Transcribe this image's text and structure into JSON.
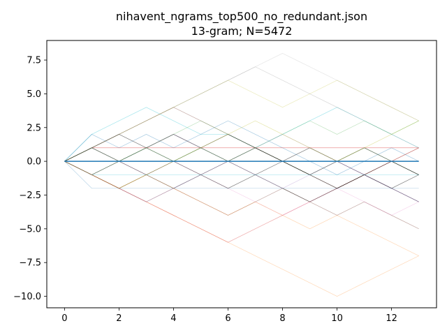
{
  "chart_data": {
    "type": "line",
    "title": "nihavent_ngrams_top500_no_redundant.json",
    "subtitle": "13-gram; N=5472",
    "xlabel": "",
    "ylabel": "",
    "xlim": [
      -0.65,
      13.65
    ],
    "ylim": [
      -10.85,
      8.95
    ],
    "x_ticks": [
      {
        "value": 0,
        "label": "0"
      },
      {
        "value": 2,
        "label": "2"
      },
      {
        "value": 4,
        "label": "4"
      },
      {
        "value": 6,
        "label": "6"
      },
      {
        "value": 8,
        "label": "8"
      },
      {
        "value": 10,
        "label": "10"
      },
      {
        "value": 12,
        "label": "12"
      }
    ],
    "y_ticks": [
      {
        "value": 7.5,
        "label": "7.5"
      },
      {
        "value": 5.0,
        "label": "5.0"
      },
      {
        "value": 2.5,
        "label": "2.5"
      },
      {
        "value": 0.0,
        "label": "0.0"
      },
      {
        "value": -2.5,
        "label": "−2.5"
      },
      {
        "value": -5.0,
        "label": "−5.0"
      },
      {
        "value": -7.5,
        "label": "−7.5"
      },
      {
        "value": -10.0,
        "label": "−10.0"
      }
    ],
    "grid": false,
    "legend": "none",
    "x": [
      0,
      1,
      2,
      3,
      4,
      5,
      6,
      7,
      8,
      9,
      10,
      11,
      12,
      13
    ],
    "series": [
      {
        "color": "#1f77b4",
        "opacity": 1.0,
        "values": [
          0,
          0,
          0,
          0,
          0,
          0,
          0,
          0,
          0,
          0,
          0,
          0,
          0,
          0
        ]
      },
      {
        "color": "#2ca02c",
        "opacity": 0.6,
        "values": [
          0,
          0,
          0,
          0,
          0,
          0,
          0,
          0,
          0,
          0,
          0,
          0,
          0,
          0
        ]
      },
      {
        "color": "#17becf",
        "opacity": 0.4,
        "values": [
          0,
          2,
          3,
          4,
          3,
          2,
          2,
          1,
          2,
          3,
          4,
          3,
          2,
          1
        ]
      },
      {
        "color": "#1f77b4",
        "opacity": 0.4,
        "values": [
          0,
          2,
          1,
          2,
          1,
          2,
          3,
          2,
          1,
          0,
          -1,
          0,
          1,
          0
        ]
      },
      {
        "color": "#d62728",
        "opacity": 0.5,
        "values": [
          0,
          1,
          1,
          1,
          1,
          1,
          1,
          1,
          1,
          1,
          1,
          1,
          1,
          1
        ]
      },
      {
        "color": "#8c564b",
        "opacity": 0.5,
        "values": [
          0,
          1,
          2,
          3,
          4,
          3,
          2,
          1,
          0,
          -1,
          -2,
          -1,
          0,
          1
        ]
      },
      {
        "color": "#7f7f7f",
        "opacity": 0.3,
        "values": [
          0,
          1,
          2,
          3,
          4,
          5,
          6,
          7,
          6,
          5,
          4,
          3,
          2,
          1
        ]
      },
      {
        "color": "#bcbd22",
        "opacity": 0.3,
        "values": [
          0,
          1,
          2,
          3,
          4,
          5,
          6,
          5,
          4,
          5,
          6,
          5,
          4,
          3
        ]
      },
      {
        "color": "#9467bd",
        "opacity": 0.3,
        "values": [
          0,
          1,
          0,
          1,
          2,
          1,
          0,
          1,
          2,
          1,
          0,
          -1,
          -2,
          -3
        ]
      },
      {
        "color": "#ff7f0e",
        "opacity": 0.3,
        "values": [
          0,
          -1,
          -2,
          -3,
          -4,
          -5,
          -6,
          -7,
          -8,
          -9,
          -10,
          -9,
          -8,
          -7
        ]
      },
      {
        "color": "#8c564b",
        "opacity": 0.5,
        "values": [
          0,
          -1,
          -2,
          -3,
          -2,
          -3,
          -4,
          -3,
          -2,
          -3,
          -4,
          -3,
          -4,
          -5
        ]
      },
      {
        "color": "#1f77b4",
        "opacity": 0.3,
        "values": [
          0,
          -2,
          -2,
          -2,
          -2,
          -2,
          -2,
          -2,
          -2,
          -2,
          -2,
          -2,
          -2,
          -2
        ]
      },
      {
        "color": "#2ca02c",
        "opacity": 0.3,
        "values": [
          0,
          -1,
          0,
          1,
          2,
          3,
          2,
          1,
          0,
          -1,
          0,
          1,
          0,
          -1
        ]
      },
      {
        "color": "#d62728",
        "opacity": 0.4,
        "values": [
          0,
          -1,
          -2,
          -3,
          -4,
          -5,
          -6,
          -5,
          -4,
          -3,
          -2,
          -1,
          0,
          1
        ]
      },
      {
        "color": "#e377c2",
        "opacity": 0.3,
        "values": [
          0,
          1,
          0,
          -1,
          0,
          -1,
          -2,
          -3,
          -4,
          -3,
          -2,
          -3,
          -4,
          -3
        ]
      },
      {
        "color": "#000000",
        "opacity": 0.5,
        "values": [
          0,
          1,
          0,
          -1,
          -2,
          -1,
          0,
          1,
          0,
          -1,
          0,
          -1,
          -2,
          -1
        ]
      },
      {
        "color": "#000000",
        "opacity": 0.5,
        "values": [
          0,
          1,
          2,
          1,
          0,
          1,
          2,
          1,
          0,
          1,
          0,
          1,
          0,
          -1
        ]
      },
      {
        "color": "#000000",
        "opacity": 0.5,
        "values": [
          0,
          -1,
          -2,
          -1,
          0,
          -1,
          -2,
          -1,
          0,
          -1,
          -2,
          -1,
          0,
          -1
        ]
      },
      {
        "color": "#000000",
        "opacity": 0.5,
        "values": [
          0,
          -1,
          0,
          1,
          2,
          1,
          0,
          -1,
          -2,
          -3,
          -2,
          -1,
          -2,
          -3
        ]
      },
      {
        "color": "#bcbd22",
        "opacity": 0.4,
        "values": [
          0,
          -1,
          -2,
          -1,
          0,
          1,
          2,
          3,
          2,
          1,
          0,
          1,
          2,
          3
        ]
      },
      {
        "color": "#7f7f7f",
        "opacity": 0.2,
        "values": [
          0,
          1,
          2,
          3,
          4,
          5,
          6,
          7,
          8,
          7,
          6,
          5,
          4,
          3
        ]
      },
      {
        "color": "#17becf",
        "opacity": 0.3,
        "values": [
          0,
          -1,
          -1,
          -1,
          -1,
          -1,
          -1,
          -1,
          -1,
          -1,
          -1,
          -1,
          -1,
          -1
        ]
      },
      {
        "color": "#9467bd",
        "opacity": 0.3,
        "values": [
          0,
          -1,
          -2,
          -3,
          -2,
          -1,
          0,
          -1,
          -2,
          -1,
          0,
          -1,
          -2,
          -3
        ]
      },
      {
        "color": "#ff7f0e",
        "opacity": 0.3,
        "values": [
          0,
          -1,
          -2,
          -1,
          -2,
          -3,
          -4,
          -3,
          -4,
          -5,
          -4,
          -5,
          -6,
          -7
        ]
      },
      {
        "color": "#2ca02c",
        "opacity": 0.3,
        "values": [
          0,
          1,
          0,
          1,
          0,
          1,
          0,
          1,
          2,
          3,
          2,
          3,
          2,
          3
        ]
      }
    ]
  }
}
